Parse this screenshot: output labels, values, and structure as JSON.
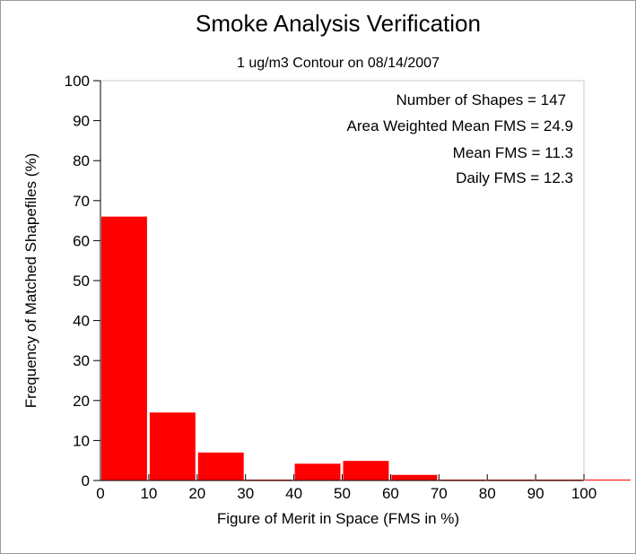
{
  "chart_data": {
    "type": "bar",
    "title": "Smoke Analysis Verification",
    "subtitle": "1 ug/m3 Contour on 08/14/2007",
    "xlabel": "Figure of Merit in Space (FMS in %)",
    "ylabel": "Frequency of Matched Shapefiles (%)",
    "xlim": [
      0,
      100
    ],
    "ylim": [
      0,
      100
    ],
    "xticks": [
      0,
      10,
      20,
      30,
      40,
      50,
      60,
      70,
      80,
      90,
      100
    ],
    "yticks": [
      0,
      10,
      20,
      30,
      40,
      50,
      60,
      70,
      80,
      90,
      100
    ],
    "bins": [
      {
        "start": 0,
        "end": 10,
        "value": 66
      },
      {
        "start": 10,
        "end": 20,
        "value": 17
      },
      {
        "start": 20,
        "end": 30,
        "value": 7
      },
      {
        "start": 30,
        "end": 40,
        "value": 0
      },
      {
        "start": 40,
        "end": 50,
        "value": 4.2
      },
      {
        "start": 50,
        "end": 60,
        "value": 4.9
      },
      {
        "start": 60,
        "end": 70,
        "value": 1.4
      },
      {
        "start": 70,
        "end": 80,
        "value": 0
      },
      {
        "start": 80,
        "end": 90,
        "value": 0
      },
      {
        "start": 90,
        "end": 100,
        "value": 0
      },
      {
        "start": 100,
        "end": 110,
        "value": 0
      }
    ],
    "bar_color": "#ff0000",
    "grid": false,
    "annotations": [
      "Number of Shapes = 147",
      "Area Weighted Mean FMS = 24.9",
      "Mean FMS = 11.3",
      "Daily FMS = 12.3"
    ]
  }
}
